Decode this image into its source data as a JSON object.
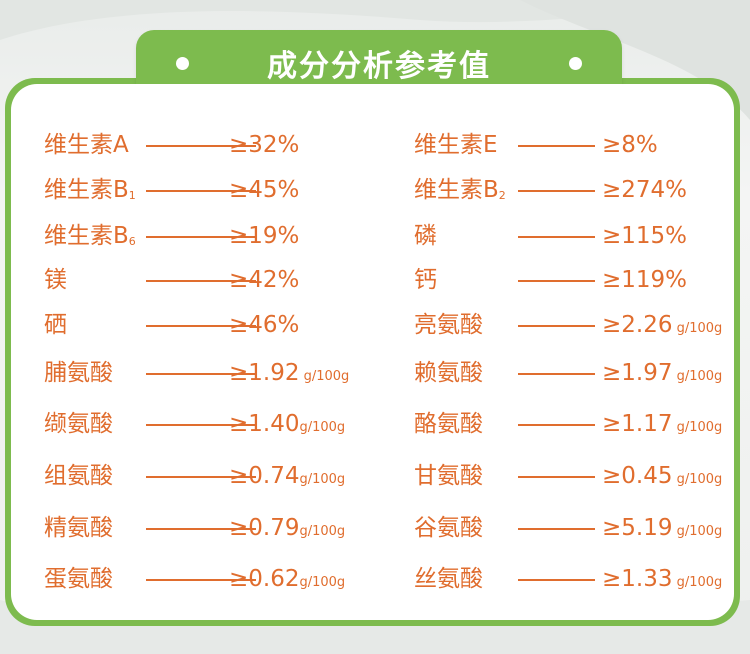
{
  "header": {
    "title": "成分分析参考值"
  },
  "left_column": [
    {
      "name": "维生素A",
      "sub": "",
      "value": "≥32%",
      "unit": ""
    },
    {
      "name": "维生素B",
      "sub": "1",
      "value": "≥45%",
      "unit": ""
    },
    {
      "name": "维生素B",
      "sub": "6",
      "value": "≥19%",
      "unit": ""
    },
    {
      "name": "镁",
      "sub": "",
      "value": "≥42%",
      "unit": ""
    },
    {
      "name": "硒",
      "sub": "",
      "value": "≥46%",
      "unit": ""
    },
    {
      "name": "脯氨酸",
      "sub": "",
      "value": "≥1.92",
      "unit": " g/100g"
    },
    {
      "name": "缬氨酸",
      "sub": "",
      "value": "≥1.40",
      "unit": "g/100g"
    },
    {
      "name": "组氨酸",
      "sub": "",
      "value": "≥0.74",
      "unit": "g/100g"
    },
    {
      "name": "精氨酸",
      "sub": "",
      "value": "≥0.79",
      "unit": "g/100g"
    },
    {
      "name": "蛋氨酸",
      "sub": "",
      "value": "≥0.62",
      "unit": "g/100g"
    }
  ],
  "right_column": [
    {
      "name": "维生素E",
      "sub": "",
      "value": "≥8%",
      "unit": ""
    },
    {
      "name": "维生素B",
      "sub": "2",
      "value": "≥274%",
      "unit": ""
    },
    {
      "name": "磷",
      "sub": "",
      "value": "≥115%",
      "unit": ""
    },
    {
      "name": "钙",
      "sub": "",
      "value": "≥119%",
      "unit": ""
    },
    {
      "name": "亮氨酸",
      "sub": "",
      "value": "≥2.26",
      "unit": " g/100g"
    },
    {
      "name": "赖氨酸",
      "sub": "",
      "value": "≥1.97",
      "unit": " g/100g"
    },
    {
      "name": "酪氨酸",
      "sub": "",
      "value": "≥1.17",
      "unit": " g/100g"
    },
    {
      "name": "甘氨酸",
      "sub": "",
      "value": "≥0.45",
      "unit": " g/100g"
    },
    {
      "name": "谷氨酸",
      "sub": "",
      "value": "≥5.19",
      "unit": " g/100g"
    },
    {
      "name": "丝氨酸",
      "sub": "",
      "value": "≥1.33",
      "unit": " g/100g"
    }
  ],
  "colors": {
    "accent_green": "#7dbb4e",
    "text_orange": "#e06d2e",
    "card_bg": "#ffffff"
  }
}
